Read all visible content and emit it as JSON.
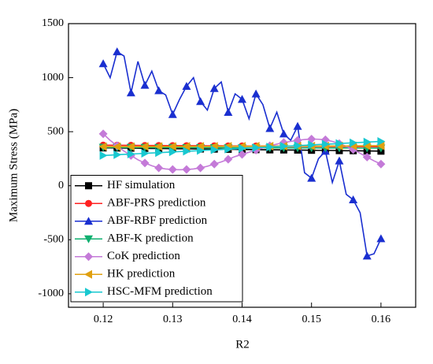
{
  "chart_data": {
    "type": "line",
    "xlabel": "R2",
    "ylabel": "Maximum Stress (MPa)",
    "x": [
      0.12,
      0.121,
      0.122,
      0.123,
      0.124,
      0.125,
      0.126,
      0.127,
      0.128,
      0.129,
      0.13,
      0.131,
      0.132,
      0.133,
      0.134,
      0.135,
      0.136,
      0.137,
      0.138,
      0.139,
      0.14,
      0.141,
      0.142,
      0.143,
      0.144,
      0.145,
      0.146,
      0.147,
      0.148,
      0.149,
      0.15,
      0.151,
      0.152,
      0.153,
      0.154,
      0.155,
      0.156,
      0.157,
      0.158,
      0.159,
      0.16
    ],
    "xlim": [
      0.115,
      0.165
    ],
    "xticks": [
      0.12,
      0.13,
      0.14,
      0.15,
      0.16
    ],
    "ylim": [
      -1125,
      1500
    ],
    "yticks": [
      -1000,
      -500,
      0,
      500,
      1000,
      1500
    ],
    "legend": "lower left",
    "series": [
      {
        "name": "HF simulation",
        "color": "#000000",
        "marker": "square",
        "values": [
          350,
          350,
          349,
          348,
          348,
          347,
          346,
          345,
          345,
          344,
          343,
          342,
          342,
          341,
          340,
          340,
          339,
          338,
          337,
          336,
          335,
          335,
          334,
          333,
          332,
          332,
          331,
          330,
          330,
          329,
          328,
          327,
          327,
          326,
          325,
          324,
          324,
          323,
          322,
          321,
          320
        ]
      },
      {
        "name": "ABF-PRS prediction",
        "color": "#ff2020",
        "marker": "circle",
        "values": [
          375,
          375,
          374,
          374,
          373,
          373,
          372,
          372,
          372,
          371,
          371,
          371,
          370,
          370,
          370,
          369,
          369,
          369,
          368,
          368,
          368,
          367,
          367,
          367,
          366,
          366,
          366,
          365,
          365,
          365,
          364,
          364,
          364,
          363,
          363,
          363,
          362,
          362,
          362,
          361,
          361
        ]
      },
      {
        "name": "ABF-RBF prediction",
        "color": "#1a2fd0",
        "marker": "triangle-up",
        "values": [
          1130,
          1000,
          1240,
          1200,
          860,
          1150,
          930,
          1060,
          880,
          840,
          660,
          800,
          920,
          1000,
          780,
          700,
          900,
          960,
          680,
          850,
          800,
          620,
          850,
          750,
          530,
          680,
          480,
          420,
          550,
          120,
          70,
          250,
          320,
          30,
          230,
          -80,
          -130,
          -250,
          -650,
          -630,
          -490
        ]
      },
      {
        "name": "ABF-K prediction",
        "color": "#10b070",
        "marker": "triangle-down",
        "values": [
          355,
          355,
          355,
          354,
          354,
          354,
          354,
          353,
          353,
          353,
          353,
          353,
          352,
          352,
          352,
          352,
          352,
          352,
          351,
          351,
          351,
          351,
          351,
          351,
          350,
          350,
          350,
          350,
          350,
          350,
          350,
          349,
          349,
          349,
          349,
          349,
          349,
          348,
          348,
          348,
          348
        ]
      },
      {
        "name": "CoK prediction",
        "color": "#c47ad8",
        "marker": "diamond",
        "values": [
          480,
          420,
          370,
          320,
          280,
          240,
          210,
          185,
          165,
          155,
          150,
          148,
          150,
          155,
          165,
          180,
          200,
          220,
          245,
          270,
          290,
          310,
          330,
          350,
          370,
          385,
          400,
          410,
          420,
          428,
          432,
          430,
          425,
          410,
          390,
          365,
          335,
          300,
          265,
          230,
          200
        ]
      },
      {
        "name": "HK prediction",
        "color": "#e0a010",
        "marker": "triangle-left",
        "values": [
          362,
          362,
          362,
          362,
          362,
          362,
          363,
          363,
          363,
          363,
          363,
          363,
          364,
          364,
          364,
          364,
          364,
          365,
          365,
          365,
          365,
          365,
          366,
          366,
          366,
          366,
          366,
          367,
          367,
          367,
          367,
          367,
          368,
          368,
          368,
          368,
          369,
          369,
          369,
          370,
          370
        ]
      },
      {
        "name": "HSC-MFM prediction",
        "color": "#18c8d0",
        "marker": "triangle-right",
        "values": [
          280,
          283,
          287,
          290,
          293,
          296,
          300,
          303,
          306,
          309,
          313,
          316,
          319,
          322,
          326,
          329,
          332,
          335,
          339,
          342,
          345,
          348,
          352,
          355,
          358,
          361,
          365,
          368,
          371,
          374,
          378,
          381,
          384,
          387,
          391,
          394,
          397,
          400,
          404,
          407,
          410
        ]
      }
    ]
  }
}
